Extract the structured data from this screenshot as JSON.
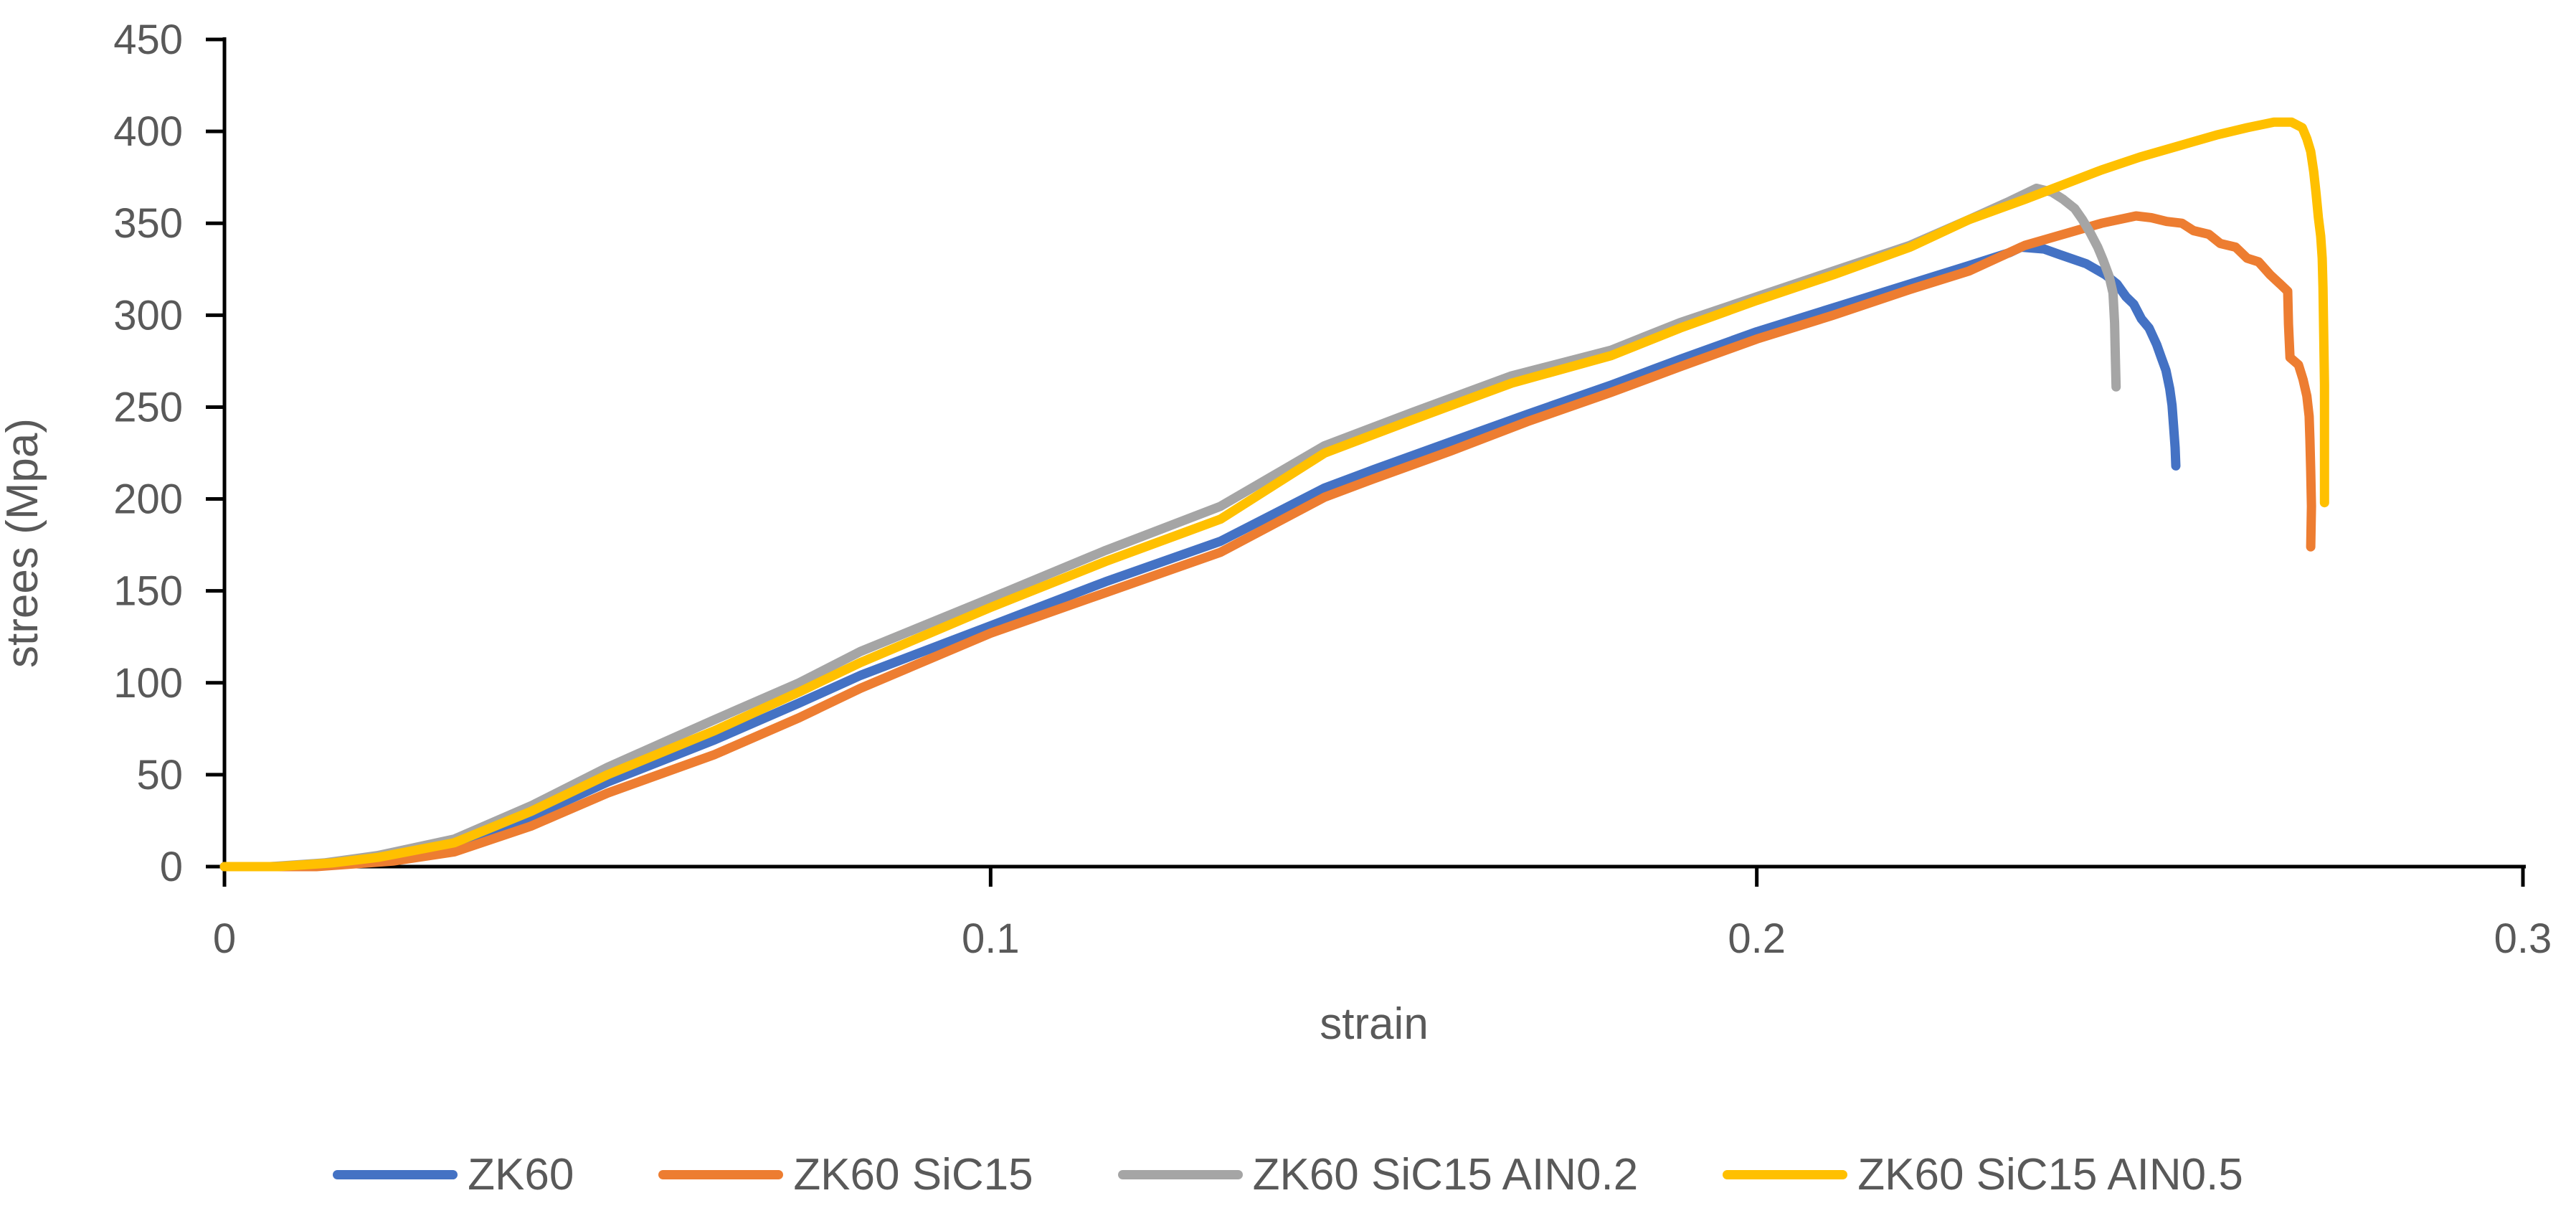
{
  "chart_data": {
    "type": "line",
    "title": "",
    "xlabel": "strain",
    "ylabel": "strees (Mpa)",
    "xlim": [
      0,
      0.3
    ],
    "ylim": [
      0,
      450
    ],
    "grid": false,
    "background": "#ffffff",
    "axis_color": "#000000",
    "text_color": "#595959",
    "legend_position": "bottom",
    "x_ticks": [
      {
        "value": 0,
        "label": "0"
      },
      {
        "value": 0.1,
        "label": "0.1"
      },
      {
        "value": 0.2,
        "label": "0.2"
      },
      {
        "value": 0.3,
        "label": "0.3"
      }
    ],
    "y_ticks": [
      {
        "value": 0,
        "label": "0"
      },
      {
        "value": 50,
        "label": "50"
      },
      {
        "value": 100,
        "label": "100"
      },
      {
        "value": 150,
        "label": "150"
      },
      {
        "value": 200,
        "label": "200"
      },
      {
        "value": 250,
        "label": "250"
      },
      {
        "value": 300,
        "label": "300"
      },
      {
        "value": 350,
        "label": "350"
      },
      {
        "value": 400,
        "label": "400"
      },
      {
        "value": 450,
        "label": "450"
      }
    ],
    "series": [
      {
        "name": "ZK60",
        "color": "#4472C4",
        "points": [
          [
            0,
            0
          ],
          [
            0.008,
            0
          ],
          [
            0.015,
            2
          ],
          [
            0.02,
            4
          ],
          [
            0.03,
            11
          ],
          [
            0.04,
            27
          ],
          [
            0.05,
            46
          ],
          [
            0.064,
            69
          ],
          [
            0.075,
            89
          ],
          [
            0.083,
            104
          ],
          [
            0.1,
            131
          ],
          [
            0.115,
            155
          ],
          [
            0.13,
            177
          ],
          [
            0.1436,
            206
          ],
          [
            0.15,
            216
          ],
          [
            0.16,
            231
          ],
          [
            0.17,
            246
          ],
          [
            0.181,
            262
          ],
          [
            0.19,
            276
          ],
          [
            0.2,
            291
          ],
          [
            0.21,
            304
          ],
          [
            0.22,
            317
          ],
          [
            0.2277,
            327
          ],
          [
            0.233,
            334
          ],
          [
            0.2345,
            337
          ],
          [
            0.2375,
            336
          ],
          [
            0.2395,
            333
          ],
          [
            0.243,
            328
          ],
          [
            0.2455,
            322
          ],
          [
            0.247,
            317
          ],
          [
            0.2482,
            310
          ],
          [
            0.2492,
            306
          ],
          [
            0.2502,
            298
          ],
          [
            0.2512,
            293
          ],
          [
            0.2522,
            284
          ],
          [
            0.2528,
            277
          ],
          [
            0.2534,
            270
          ],
          [
            0.2539,
            260
          ],
          [
            0.2542,
            251
          ],
          [
            0.2544,
            240
          ],
          [
            0.2546,
            228
          ],
          [
            0.2547,
            218
          ]
        ]
      },
      {
        "name": "ZK60 SiC15",
        "color": "#ED7D31",
        "points": [
          [
            0,
            0
          ],
          [
            0.012,
            0
          ],
          [
            0.022,
            3
          ],
          [
            0.03,
            8
          ],
          [
            0.04,
            22
          ],
          [
            0.05,
            40
          ],
          [
            0.064,
            61
          ],
          [
            0.075,
            81
          ],
          [
            0.083,
            97
          ],
          [
            0.1,
            127
          ],
          [
            0.115,
            149
          ],
          [
            0.13,
            171
          ],
          [
            0.1436,
            201
          ],
          [
            0.15,
            211
          ],
          [
            0.16,
            226
          ],
          [
            0.17,
            242
          ],
          [
            0.181,
            258
          ],
          [
            0.19,
            272
          ],
          [
            0.2,
            287
          ],
          [
            0.21,
            300
          ],
          [
            0.22,
            314
          ],
          [
            0.2277,
            324
          ],
          [
            0.235,
            338
          ],
          [
            0.24,
            344
          ],
          [
            0.245,
            350
          ],
          [
            0.2495,
            354
          ],
          [
            0.2515,
            353
          ],
          [
            0.2535,
            351
          ],
          [
            0.2555,
            350
          ],
          [
            0.257,
            346
          ],
          [
            0.259,
            344
          ],
          [
            0.2605,
            339
          ],
          [
            0.2625,
            337
          ],
          [
            0.264,
            331
          ],
          [
            0.2655,
            329
          ],
          [
            0.267,
            322
          ],
          [
            0.2683,
            317
          ],
          [
            0.2693,
            313
          ],
          [
            0.2694,
            295
          ],
          [
            0.2696,
            277
          ],
          [
            0.2707,
            273
          ],
          [
            0.2713,
            265
          ],
          [
            0.2718,
            256
          ],
          [
            0.2721,
            245
          ],
          [
            0.2722,
            232
          ],
          [
            0.2723,
            215
          ],
          [
            0.2724,
            196
          ],
          [
            0.2723,
            174
          ]
        ]
      },
      {
        "name": "ZK60 SiC15 AIN0.2",
        "color": "#A5A5A5",
        "points": [
          [
            0,
            0
          ],
          [
            0.006,
            0
          ],
          [
            0.013,
            2
          ],
          [
            0.02,
            6
          ],
          [
            0.03,
            15
          ],
          [
            0.04,
            33
          ],
          [
            0.05,
            54
          ],
          [
            0.064,
            80
          ],
          [
            0.075,
            100
          ],
          [
            0.083,
            117
          ],
          [
            0.1,
            146
          ],
          [
            0.115,
            172
          ],
          [
            0.13,
            196
          ],
          [
            0.1436,
            229
          ],
          [
            0.155,
            247
          ],
          [
            0.168,
            267
          ],
          [
            0.181,
            281
          ],
          [
            0.19,
            296
          ],
          [
            0.2,
            310
          ],
          [
            0.21,
            324
          ],
          [
            0.22,
            338
          ],
          [
            0.2277,
            352
          ],
          [
            0.233,
            362
          ],
          [
            0.2365,
            369
          ],
          [
            0.2385,
            367
          ],
          [
            0.24,
            363
          ],
          [
            0.2415,
            358
          ],
          [
            0.2425,
            352
          ],
          [
            0.2435,
            345
          ],
          [
            0.2445,
            337
          ],
          [
            0.2452,
            330
          ],
          [
            0.246,
            321
          ],
          [
            0.2465,
            312
          ],
          [
            0.2467,
            296
          ],
          [
            0.2468,
            278
          ],
          [
            0.2469,
            261
          ]
        ]
      },
      {
        "name": "ZK60 SiC15 AIN0.5",
        "color": "#FFC000",
        "points": [
          [
            0,
            0
          ],
          [
            0.007,
            0
          ],
          [
            0.014,
            2
          ],
          [
            0.02,
            5
          ],
          [
            0.03,
            13
          ],
          [
            0.04,
            30
          ],
          [
            0.05,
            50
          ],
          [
            0.064,
            74
          ],
          [
            0.075,
            95
          ],
          [
            0.083,
            111
          ],
          [
            0.1,
            141
          ],
          [
            0.115,
            166
          ],
          [
            0.13,
            189
          ],
          [
            0.1436,
            225
          ],
          [
            0.155,
            243
          ],
          [
            0.168,
            263
          ],
          [
            0.181,
            278
          ],
          [
            0.19,
            293
          ],
          [
            0.2,
            308
          ],
          [
            0.21,
            322
          ],
          [
            0.22,
            337
          ],
          [
            0.2277,
            352
          ],
          [
            0.235,
            363
          ],
          [
            0.24,
            371
          ],
          [
            0.245,
            379
          ],
          [
            0.25,
            386
          ],
          [
            0.255,
            392
          ],
          [
            0.26,
            398
          ],
          [
            0.264,
            402
          ],
          [
            0.2675,
            405
          ],
          [
            0.2698,
            405
          ],
          [
            0.2712,
            402
          ],
          [
            0.2718,
            396
          ],
          [
            0.2723,
            389
          ],
          [
            0.2727,
            378
          ],
          [
            0.273,
            366
          ],
          [
            0.2733,
            353
          ],
          [
            0.2736,
            343
          ],
          [
            0.2738,
            331
          ],
          [
            0.2739,
            315
          ],
          [
            0.274,
            290
          ],
          [
            0.2741,
            262
          ],
          [
            0.2741,
            232
          ],
          [
            0.2741,
            198
          ]
        ]
      }
    ]
  }
}
